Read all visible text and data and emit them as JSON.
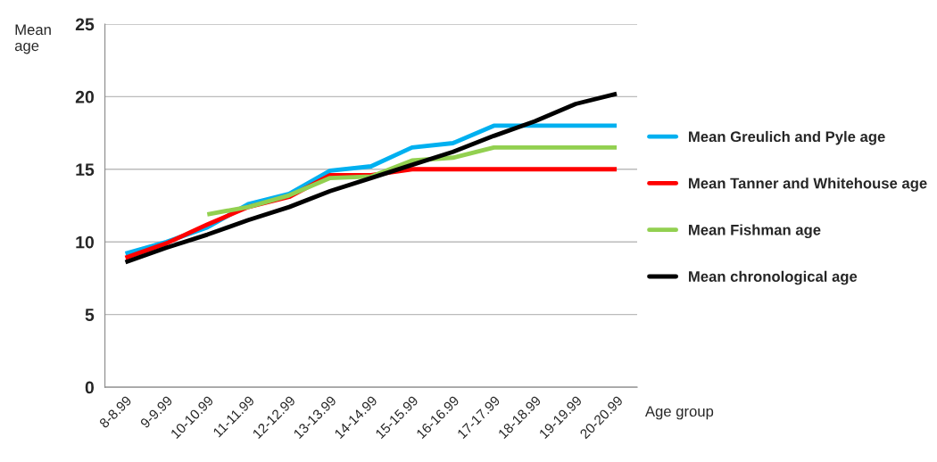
{
  "chart_data": {
    "type": "line",
    "categories": [
      "8-8.99",
      "9-9.99",
      "10-10.99",
      "11-11.99",
      "12-12.99",
      "13-13.99",
      "14-14.99",
      "15-15.99",
      "16-16.99",
      "17-17.99",
      "18-18.99",
      "19-19.99",
      "20-20.99"
    ],
    "series": [
      {
        "name": "Mean Greulich and Pyle age",
        "color": "#00b0f0",
        "values": [
          9.2,
          10.0,
          11.0,
          12.6,
          13.3,
          14.9,
          15.2,
          16.5,
          16.8,
          18.0,
          18.0,
          18.0,
          18.0
        ]
      },
      {
        "name": "Mean Tanner and Whitehouse age",
        "color": "#ff0000",
        "values": [
          8.9,
          9.9,
          11.2,
          12.4,
          13.1,
          14.6,
          14.6,
          15.0,
          15.0,
          15.0,
          15.0,
          15.0,
          15.0
        ]
      },
      {
        "name": "Mean Fishman age",
        "color": "#92d050",
        "values": [
          null,
          null,
          11.9,
          12.4,
          13.2,
          14.4,
          14.5,
          15.6,
          15.8,
          16.5,
          16.5,
          16.5,
          16.5
        ]
      },
      {
        "name": "Mean chronological age",
        "color": "#000000",
        "values": [
          8.6,
          9.6,
          10.5,
          11.5,
          12.4,
          13.5,
          14.4,
          15.3,
          16.2,
          17.3,
          18.3,
          19.5,
          20.2
        ]
      }
    ],
    "xlabel": "Age group",
    "ylabel": "Mean\nage",
    "ylim": [
      0,
      25
    ],
    "yticks": [
      0,
      5,
      10,
      15,
      20,
      25
    ],
    "grid": "y",
    "legend": "right",
    "marker": "none",
    "line_style": "solid"
  }
}
